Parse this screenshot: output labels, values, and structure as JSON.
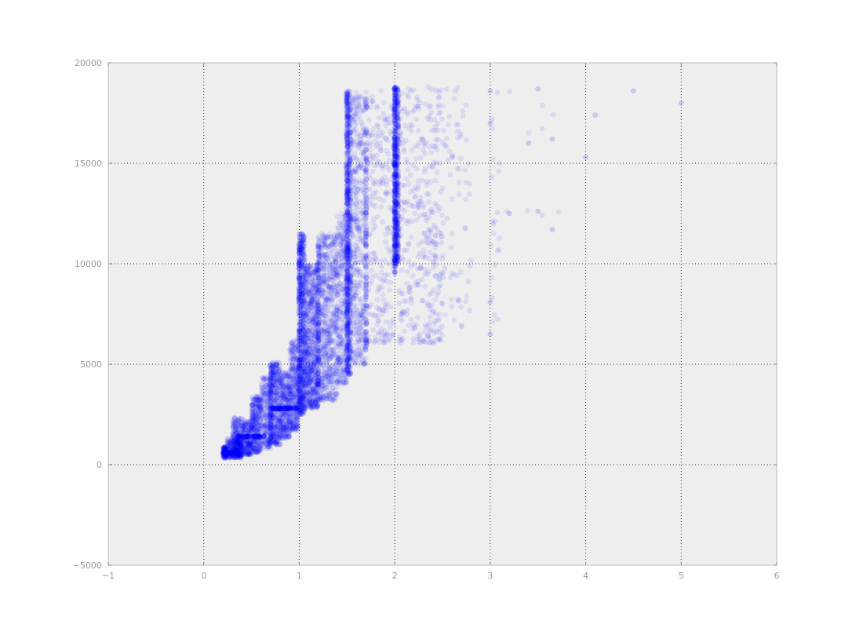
{
  "chart_data": {
    "type": "scatter",
    "title": "",
    "xlabel": "",
    "ylabel": "",
    "xlim": [
      -1,
      6
    ],
    "ylim": [
      -5000,
      20000
    ],
    "x_ticks": [
      -1,
      0,
      1,
      2,
      3,
      4,
      5,
      6
    ],
    "y_ticks": [
      -5000,
      0,
      5000,
      10000,
      15000,
      20000
    ],
    "x_tick_labels": [
      "−1",
      "0",
      "1",
      "2",
      "3",
      "4",
      "5",
      "6"
    ],
    "y_tick_labels": [
      "−5000",
      "0",
      "5000",
      "10000",
      "15000",
      "20000"
    ],
    "grid": true,
    "legend": "none",
    "colors": {
      "point": "#0000ff",
      "background": "#eeeeee",
      "grid": "#333333",
      "frame": "#bbbbbb",
      "tick_text": "#999999"
    },
    "series": [
      {
        "point_alpha": 0.08,
        "clusters": [
          {
            "x_min": 0.2,
            "x_max": 0.24,
            "y_min": 330,
            "y_max": 900,
            "count": 120
          },
          {
            "x_min": 0.24,
            "x_max": 0.4,
            "y_min": 340,
            "y_max": 1300,
            "count": 260
          },
          {
            "x_min": 0.3,
            "x_max": 0.4,
            "y_min": 400,
            "y_max": 2400,
            "count": 200
          },
          {
            "x_min": 0.4,
            "x_max": 0.5,
            "y_min": 500,
            "y_max": 2200,
            "count": 220
          },
          {
            "x_min": 0.5,
            "x_max": 0.6,
            "y_min": 600,
            "y_max": 3400,
            "count": 320
          },
          {
            "x_min": 0.6,
            "x_max": 0.7,
            "y_min": 800,
            "y_max": 4400,
            "count": 220
          },
          {
            "x_min": 0.7,
            "x_max": 0.8,
            "y_min": 1000,
            "y_max": 5100,
            "count": 380
          },
          {
            "x_min": 0.8,
            "x_max": 0.9,
            "y_min": 1300,
            "y_max": 4600,
            "count": 300
          },
          {
            "x_min": 0.9,
            "x_max": 0.99,
            "y_min": 1700,
            "y_max": 6200,
            "count": 320
          },
          {
            "x_min": 1.0,
            "x_max": 1.06,
            "y_min": 2500,
            "y_max": 11500,
            "count": 650
          },
          {
            "x_min": 1.06,
            "x_max": 1.2,
            "y_min": 2800,
            "y_max": 10000,
            "count": 700
          },
          {
            "x_min": 1.2,
            "x_max": 1.4,
            "y_min": 3200,
            "y_max": 11500,
            "count": 650
          },
          {
            "x_min": 1.4,
            "x_max": 1.5,
            "y_min": 4000,
            "y_max": 12500,
            "count": 260
          },
          {
            "x_min": 1.5,
            "x_max": 1.54,
            "y_min": 4500,
            "y_max": 18700,
            "count": 600
          },
          {
            "x_min": 1.54,
            "x_max": 1.7,
            "y_min": 5000,
            "y_max": 18700,
            "count": 420
          },
          {
            "x_min": 1.7,
            "x_max": 1.99,
            "y_min": 6000,
            "y_max": 18700,
            "count": 230
          },
          {
            "x_min": 2.0,
            "x_max": 2.04,
            "y_min": 10000,
            "y_max": 18800,
            "count": 500
          },
          {
            "x_min": 2.04,
            "x_max": 2.5,
            "y_min": 6000,
            "y_max": 18800,
            "count": 360
          },
          {
            "x_min": 2.5,
            "x_max": 2.8,
            "y_min": 7000,
            "y_max": 18800,
            "count": 70
          },
          {
            "x_min": 3.0,
            "x_max": 3.1,
            "y_min": 6500,
            "y_max": 18700,
            "count": 22
          },
          {
            "x_min": 3.1,
            "x_max": 3.8,
            "y_min": 11500,
            "y_max": 18700,
            "count": 9
          }
        ],
        "dense_bands": [
          {
            "x_min": 0.2,
            "x_max": 0.35,
            "y": 600,
            "count": 30
          },
          {
            "x_min": 0.35,
            "x_max": 0.65,
            "y": 1400,
            "count": 30
          },
          {
            "x_min": 0.68,
            "x_max": 0.98,
            "y": 2800,
            "count": 34
          }
        ],
        "vertical_streaks": [
          {
            "x": 0.7,
            "y_min": 1000,
            "y_max": 5000,
            "count": 60
          },
          {
            "x": 1.0,
            "y_min": 2500,
            "y_max": 11000,
            "count": 120
          },
          {
            "x": 1.2,
            "y_min": 3000,
            "y_max": 11000,
            "count": 90
          },
          {
            "x": 1.5,
            "y_min": 4500,
            "y_max": 18700,
            "count": 200
          },
          {
            "x": 1.7,
            "y_min": 5500,
            "y_max": 18700,
            "count": 100
          },
          {
            "x": 2.0,
            "y_min": 9500,
            "y_max": 18800,
            "count": 200
          }
        ],
        "points": [
          [
            3.0,
            18600
          ],
          [
            3.0,
            17000
          ],
          [
            3.5,
            18700
          ],
          [
            3.65,
            16200
          ],
          [
            3.4,
            16000
          ],
          [
            4.0,
            15300
          ],
          [
            4.1,
            17400
          ],
          [
            4.5,
            18600
          ],
          [
            5.0,
            18000
          ],
          [
            3.65,
            11700
          ],
          [
            3.5,
            12600
          ],
          [
            3.2,
            12500
          ],
          [
            3.0,
            8100
          ],
          [
            3.0,
            6500
          ],
          [
            2.7,
            6900
          ]
        ]
      }
    ]
  }
}
